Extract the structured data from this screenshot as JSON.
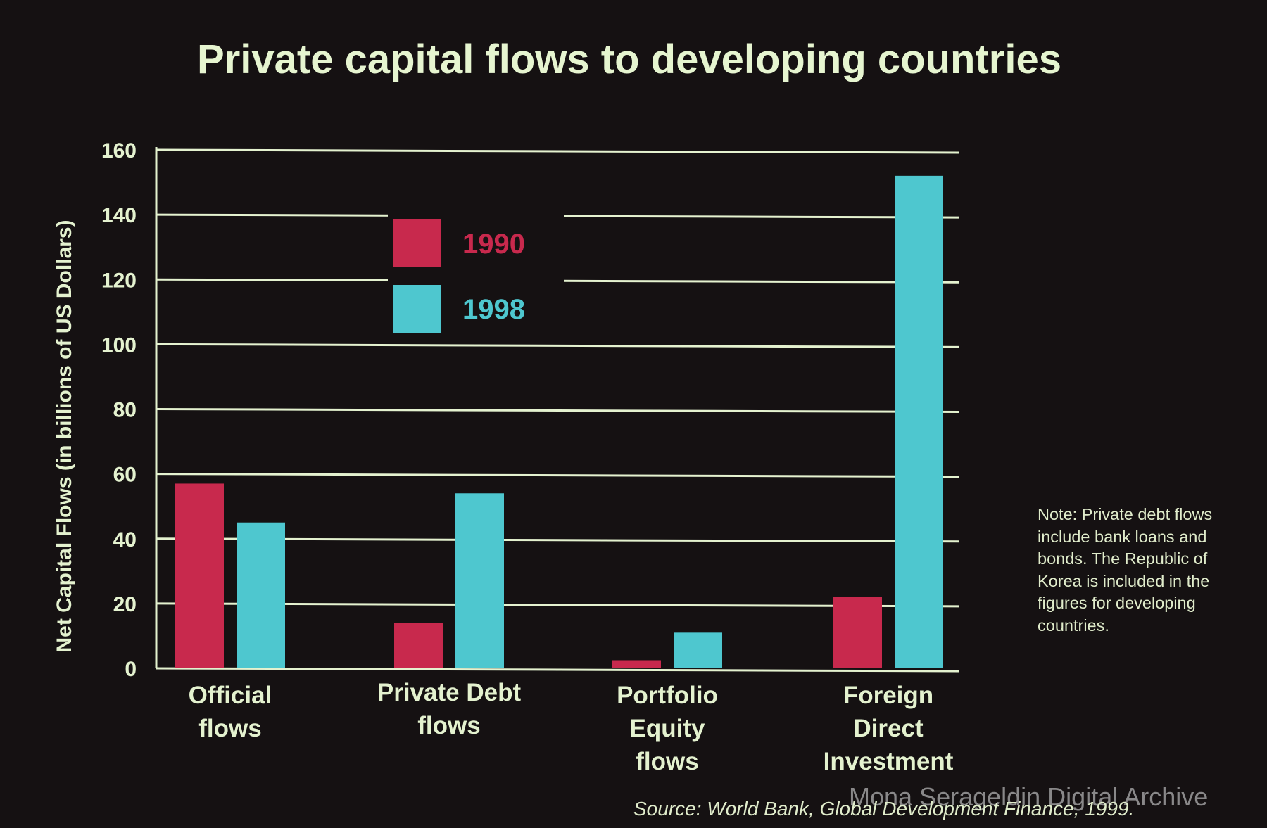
{
  "chart_data": {
    "type": "bar",
    "title": "Private capital flows to developing countries",
    "xlabel": "",
    "ylabel": "Net Capital Flows (in billions of US Dollars)",
    "ylim": [
      0,
      160
    ],
    "yticks": [
      0,
      20,
      40,
      60,
      80,
      100,
      120,
      140,
      160
    ],
    "grid": true,
    "legend_position": "top-left",
    "categories": [
      [
        "Official",
        "flows"
      ],
      [
        "Private Debt",
        "flows"
      ],
      [
        "Portfolio",
        "Equity",
        "flows"
      ],
      [
        "Foreign",
        "Direct",
        "Investment"
      ]
    ],
    "series": [
      {
        "name": "1990",
        "color": "#c8294d",
        "values": [
          57,
          14,
          2.5,
          22
        ]
      },
      {
        "name": "1998",
        "color": "#4ec7cf",
        "values": [
          45,
          54,
          11,
          152
        ]
      }
    ]
  },
  "note": "Note: Private debt flows include bank loans and bonds.  The Republic of Korea is included in the figures for developing countries.",
  "source": "Source: World Bank, Global Development Finance, 1999.",
  "watermark": "Mona Serageldin Digital Archive",
  "colors": {
    "background": "#151112",
    "text": "#e4f2cf",
    "grid": "#e4f2cf"
  }
}
